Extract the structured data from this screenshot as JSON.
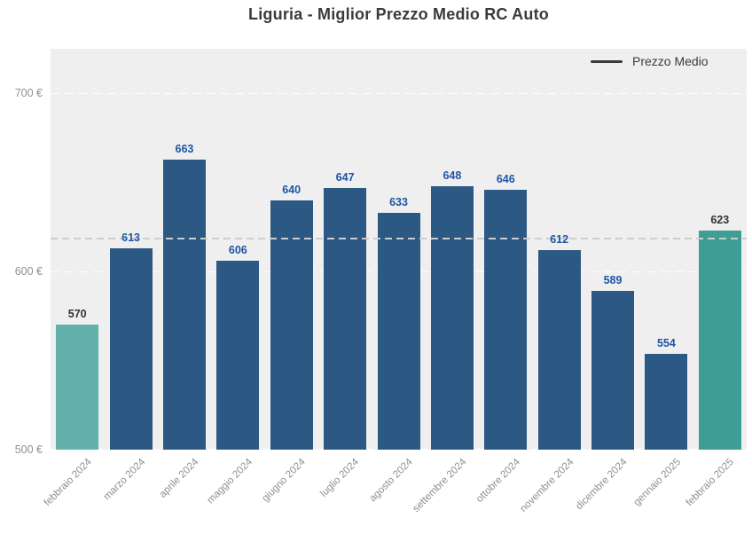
{
  "title": "Liguria - Miglior Prezzo Medio RC Auto",
  "legend": {
    "label": "Prezzo Medio"
  },
  "y_axis": {
    "ticks": [
      {
        "label": "700 €",
        "value": 700
      },
      {
        "label": "600 €",
        "value": 600
      },
      {
        "label": "500 €",
        "value": 500
      }
    ]
  },
  "chart_data": {
    "type": "bar",
    "title": "Liguria - Miglior Prezzo Medio RC Auto",
    "categories": [
      "febbraio 2024",
      "marzo 2024",
      "aprile 2024",
      "maggio 2024",
      "giugno 2024",
      "luglio 2024",
      "agosto 2024",
      "settembre 2024",
      "ottobre 2024",
      "novembre 2024",
      "dicembre 2024",
      "gennaio 2025",
      "febbraio 2025"
    ],
    "values": [
      570,
      613,
      663,
      606,
      640,
      647,
      633,
      648,
      646,
      612,
      589,
      554,
      623
    ],
    "xlabel": "",
    "ylabel": "",
    "ylim": [
      500,
      725
    ],
    "yticks": [
      500,
      600,
      700
    ],
    "grid": "horizontal-dashed",
    "legend_entries": [
      "Prezzo Medio"
    ],
    "legend_position": "top-right",
    "average_line_value": 619
  },
  "colors": {
    "plot_background": "#efefef",
    "bar_default": "#2c5884",
    "bar_first": "#62b1ab",
    "bar_last": "#3d9e96",
    "grid_line": "#ffffff",
    "average_line": "#cdcdcd",
    "title_text": "#3a3a3a",
    "axis_text": "#8f8f8f",
    "value_label_blue": "#1d55a6",
    "value_label_dark": "#333333"
  }
}
